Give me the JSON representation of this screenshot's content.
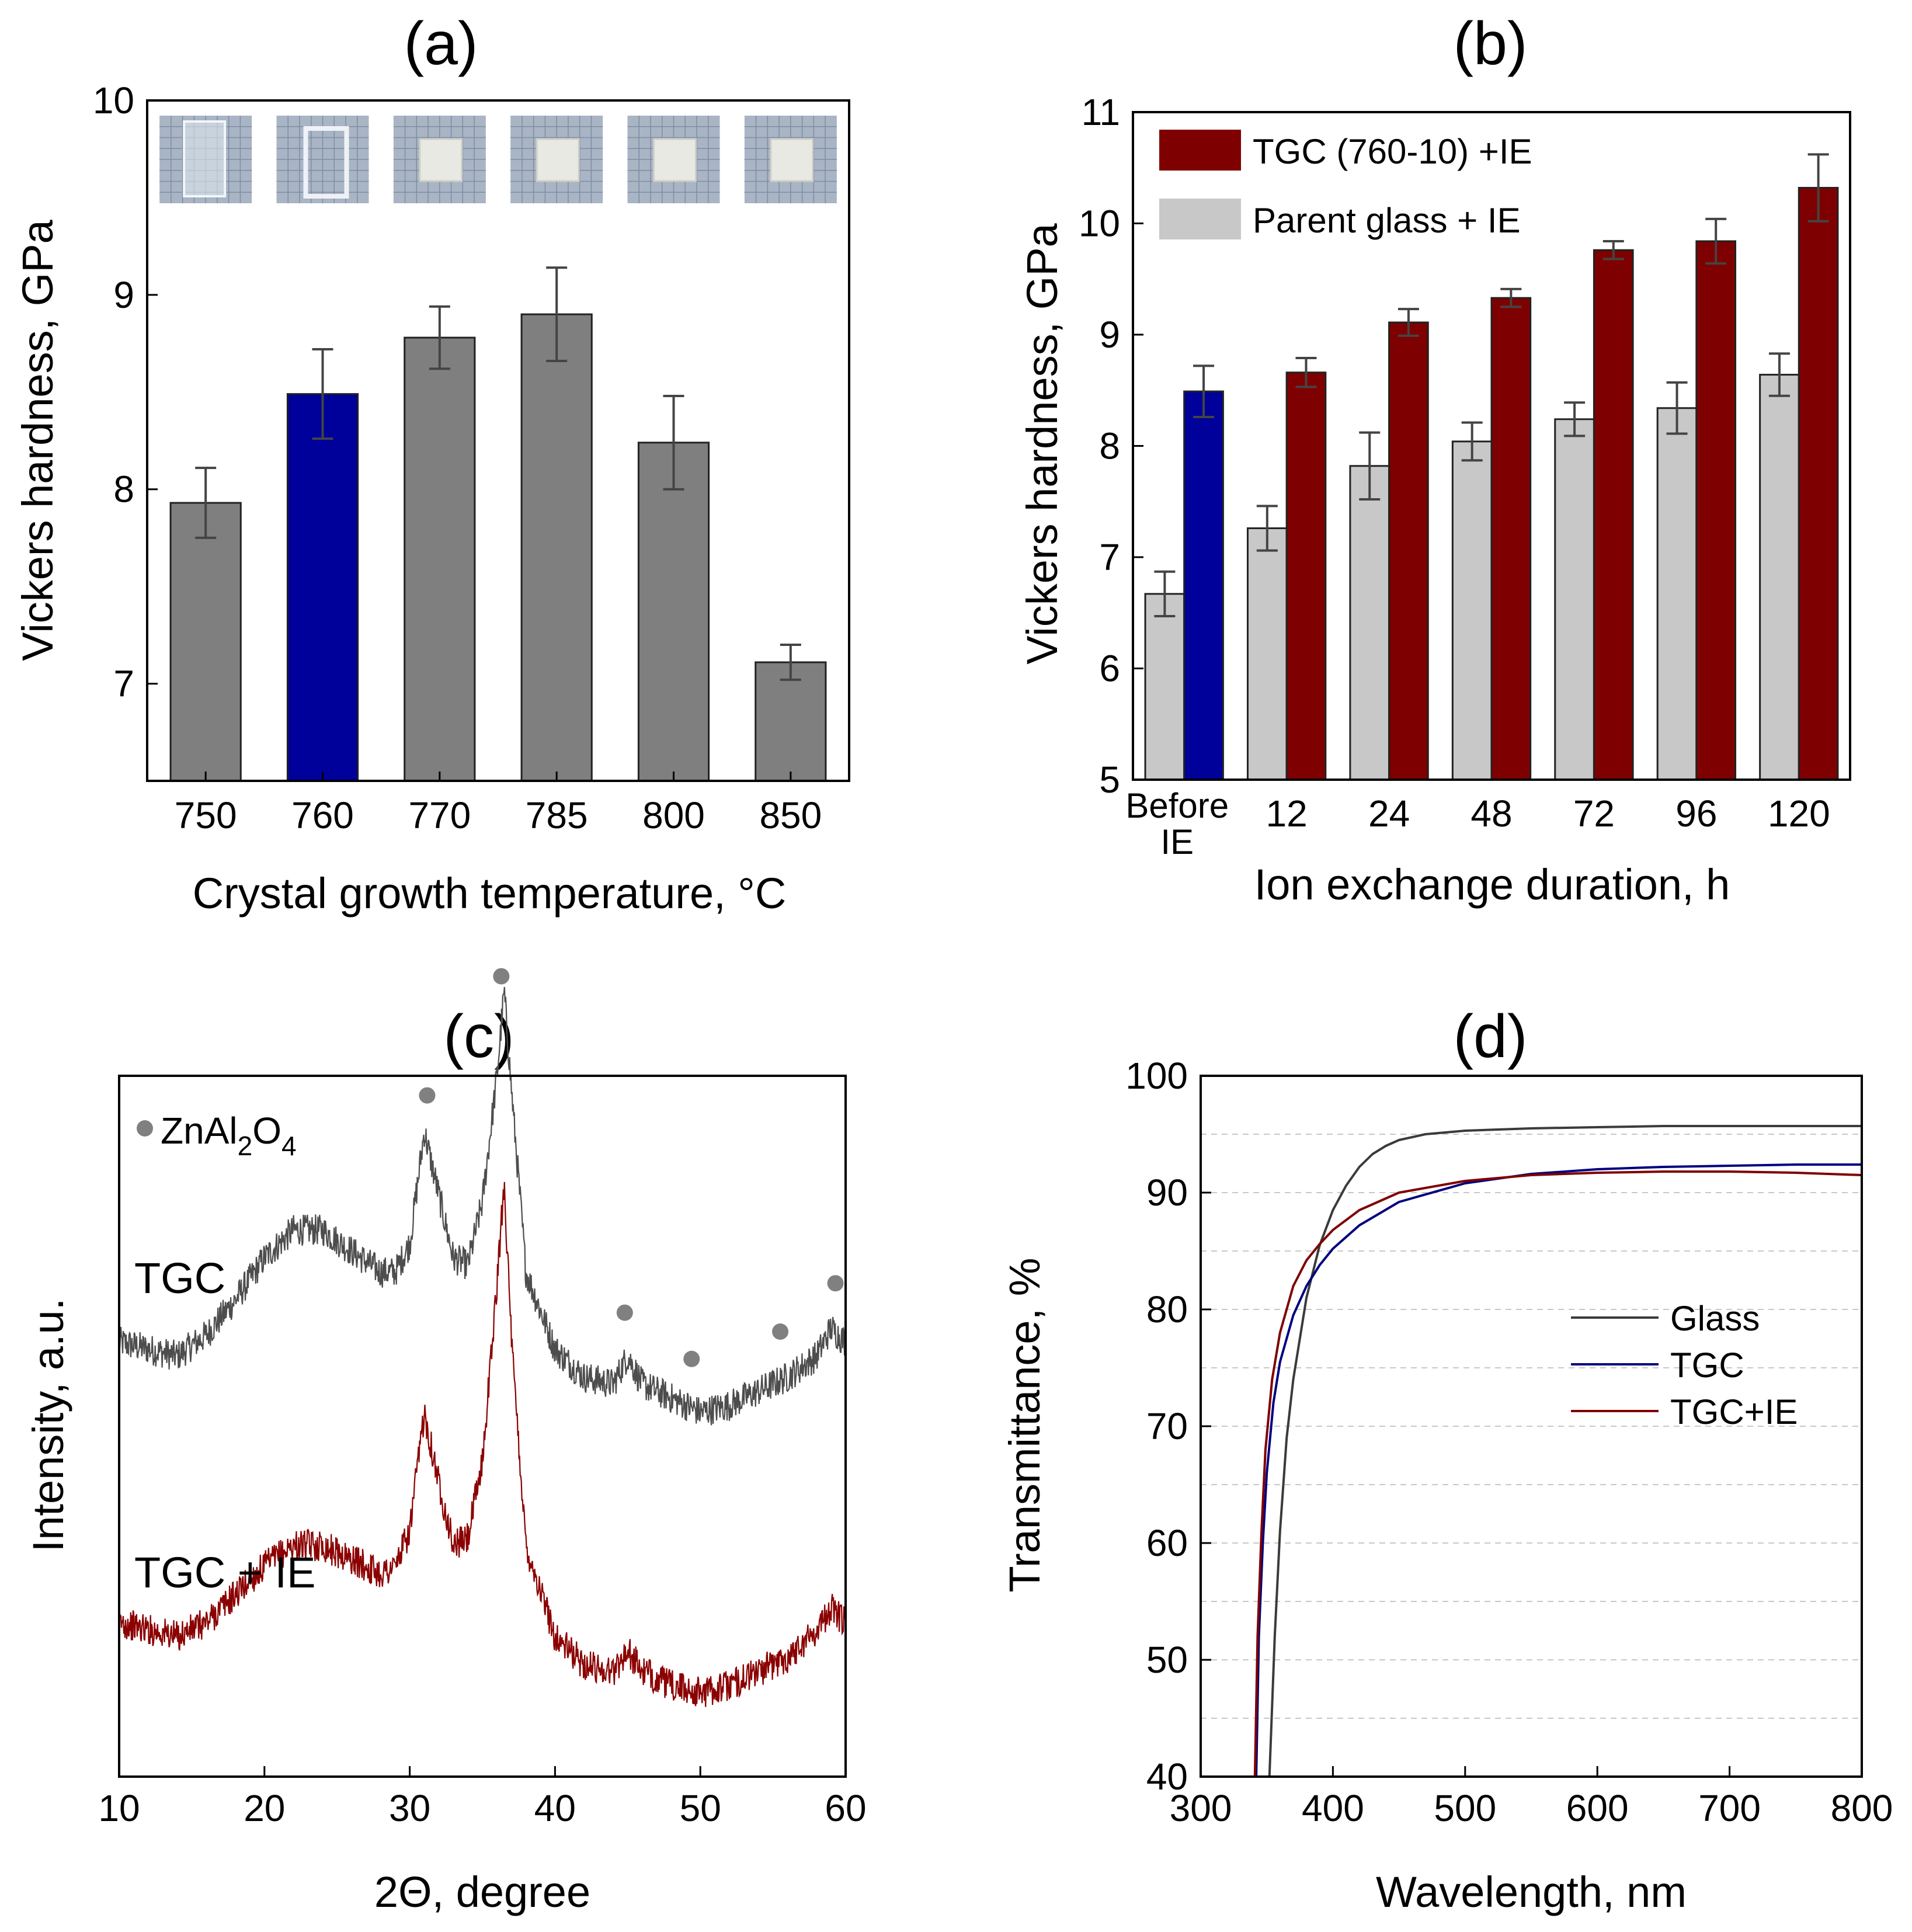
{
  "colors": {
    "gray_bar": "#7f7f7f",
    "blue_bar": "#00009a",
    "dark_red": "#7f0000",
    "light_gray": "#c8c8c8",
    "glass_line": "#3b3b3b",
    "tgc_line": "#00007f",
    "tgcie_line": "#7f0000",
    "xrd_tgc": "#4d4d4d",
    "xrd_tgcie": "#8b0000",
    "marker": "#808080",
    "errorbar": "#444444"
  },
  "chart_data": [
    {
      "id": "a",
      "type": "bar",
      "panel_label": "(a)",
      "title": "",
      "xlabel": "Crystal growth temperature, °C",
      "ylabel": "Vickers hardness, GPa",
      "ylim": [
        6.5,
        10
      ],
      "yticks": [
        "7",
        "8",
        "9",
        "10"
      ],
      "categories": [
        "750",
        "760",
        "770",
        "785",
        "800",
        "850"
      ],
      "values": [
        7.93,
        8.49,
        8.78,
        8.9,
        8.24,
        7.11
      ],
      "errors": [
        0.18,
        0.23,
        0.16,
        0.24,
        0.24,
        0.09
      ],
      "highlight_index": 1,
      "inset": "photographs of samples above each bar on grid paper",
      "sample_photos": [
        {
          "label": "750 °C sample",
          "shape": "clear-bar"
        },
        {
          "label": "760 °C sample",
          "shape": "clear-frame"
        },
        {
          "label": "770 °C sample",
          "shape": "white-block"
        },
        {
          "label": "785 °C sample",
          "shape": "white-block"
        },
        {
          "label": "800 °C sample",
          "shape": "white-block"
        },
        {
          "label": "850 °C sample",
          "shape": "white-block"
        }
      ]
    },
    {
      "id": "b",
      "type": "bar",
      "panel_label": "(b)",
      "xlabel": "Ion exchange duration, h",
      "ylabel": "Vickers hardness, GPa",
      "ylim": [
        5,
        11
      ],
      "yticks": [
        "5",
        "6",
        "7",
        "8",
        "9",
        "10",
        "11"
      ],
      "categories": [
        "Before IE",
        "12",
        "24",
        "48",
        "72",
        "96",
        "120"
      ],
      "category_lines": [
        [
          "Before",
          "IE"
        ],
        [
          "12"
        ],
        [
          "24"
        ],
        [
          "48"
        ],
        [
          "72"
        ],
        [
          "96"
        ],
        [
          "120"
        ]
      ],
      "legend_position": "top-left",
      "series": [
        {
          "name": "Parent glass + IE",
          "values": [
            6.67,
            7.26,
            7.82,
            8.04,
            8.24,
            8.34,
            8.64
          ],
          "errors": [
            0.2,
            0.2,
            0.3,
            0.17,
            0.15,
            0.23,
            0.19
          ]
        },
        {
          "name": "TGC (760-10) +IE",
          "values": [
            8.49,
            8.66,
            9.11,
            9.33,
            9.76,
            9.84,
            10.32
          ],
          "errors": [
            0.23,
            0.13,
            0.12,
            0.08,
            0.08,
            0.2,
            0.3
          ]
        }
      ],
      "first_tgc_bar_note": "Before-IE TGC bar drawn in blue"
    },
    {
      "id": "c",
      "type": "line",
      "panel_label": "(c)",
      "xlabel": "2Θ, degree",
      "ylabel": "Intensity, a.u.",
      "xlim": [
        10,
        60
      ],
      "xticks": [
        "10",
        "20",
        "30",
        "40",
        "50",
        "60"
      ],
      "legend_label": "ZnAl",
      "legend_sub1": "2",
      "legend_mid": "O",
      "legend_sub2": "4",
      "peak_markers_2theta": [
        31.2,
        36.3,
        44.8,
        49.4,
        55.5,
        59.3
      ],
      "series": [
        {
          "name": "TGC",
          "x": [
            10,
            12,
            14,
            16,
            18,
            20,
            22,
            24,
            26,
            28,
            29,
            30,
            31,
            32,
            33,
            34,
            35,
            36,
            36.5,
            37,
            38,
            40,
            42,
            44,
            45,
            46,
            48,
            50,
            52,
            54,
            55,
            56,
            58,
            59,
            60
          ],
          "y": [
            0.62,
            0.61,
            0.6,
            0.63,
            0.68,
            0.74,
            0.78,
            0.78,
            0.75,
            0.72,
            0.72,
            0.76,
            0.92,
            0.83,
            0.74,
            0.73,
            0.82,
            1.0,
            1.12,
            0.98,
            0.72,
            0.61,
            0.57,
            0.56,
            0.6,
            0.56,
            0.54,
            0.52,
            0.53,
            0.55,
            0.56,
            0.57,
            0.6,
            0.64,
            0.62
          ]
        },
        {
          "name": "TGC + IE",
          "x": [
            10,
            12,
            14,
            16,
            18,
            20,
            22,
            24,
            26,
            28,
            29,
            30,
            31,
            32,
            33,
            34,
            35,
            36,
            36.5,
            37,
            38,
            40,
            42,
            44,
            45,
            46,
            48,
            50,
            52,
            54,
            55,
            56,
            58,
            59,
            60
          ],
          "y": [
            0.22,
            0.21,
            0.2,
            0.22,
            0.26,
            0.3,
            0.33,
            0.33,
            0.31,
            0.29,
            0.3,
            0.35,
            0.52,
            0.42,
            0.33,
            0.34,
            0.45,
            0.7,
            0.85,
            0.62,
            0.33,
            0.2,
            0.16,
            0.15,
            0.18,
            0.15,
            0.13,
            0.12,
            0.13,
            0.15,
            0.16,
            0.17,
            0.21,
            0.24,
            0.22
          ]
        }
      ]
    },
    {
      "id": "d",
      "type": "line",
      "panel_label": "(d)",
      "xlabel": "Wavelength, nm",
      "ylabel": "Transmittance, %",
      "xlim": [
        300,
        800
      ],
      "ylim": [
        40,
        100
      ],
      "xticks": [
        "300",
        "400",
        "500",
        "600",
        "700",
        "800"
      ],
      "yticks": [
        "40",
        "50",
        "60",
        "70",
        "80",
        "90",
        "100"
      ],
      "legend_position": "center-right",
      "series": [
        {
          "name": "Glass",
          "x": [
            352,
            356,
            360,
            365,
            370,
            380,
            390,
            400,
            410,
            420,
            430,
            440,
            450,
            470,
            500,
            550,
            600,
            650,
            700,
            750,
            800
          ],
          "y": [
            40,
            52,
            61,
            69,
            74,
            81,
            85.5,
            88.5,
            90.6,
            92.2,
            93.3,
            94.0,
            94.5,
            95.0,
            95.3,
            95.5,
            95.6,
            95.7,
            95.7,
            95.7,
            95.7
          ]
        },
        {
          "name": "TGC",
          "x": [
            342,
            344,
            347,
            350,
            355,
            360,
            370,
            380,
            390,
            400,
            420,
            450,
            500,
            550,
            600,
            650,
            700,
            750,
            800
          ],
          "y": [
            40,
            52,
            60,
            66,
            72,
            75.5,
            79.5,
            82,
            83.8,
            85.2,
            87.2,
            89.2,
            90.8,
            91.6,
            92.0,
            92.2,
            92.3,
            92.4,
            92.4
          ]
        },
        {
          "name": "TGC+IE",
          "x": [
            341,
            343,
            346,
            349,
            354,
            360,
            370,
            380,
            390,
            400,
            420,
            450,
            500,
            550,
            600,
            650,
            700,
            750,
            800
          ],
          "y": [
            40,
            52,
            61,
            68,
            74,
            78,
            82,
            84.2,
            85.6,
            86.8,
            88.5,
            90.0,
            91.0,
            91.5,
            91.7,
            91.8,
            91.8,
            91.7,
            91.5
          ]
        }
      ]
    }
  ]
}
